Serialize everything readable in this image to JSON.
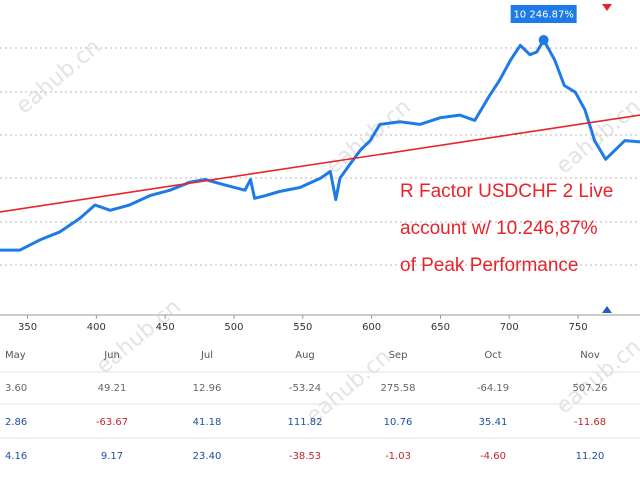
{
  "chart_data": {
    "type": "line",
    "x": [
      330,
      344.5,
      359,
      373.6,
      388,
      399,
      410,
      424,
      439,
      453.5,
      468,
      479,
      493,
      508,
      512,
      515,
      523,
      533,
      548,
      563,
      570,
      574,
      577,
      584,
      592,
      599,
      606,
      621,
      635,
      650,
      664,
      675,
      686,
      693,
      701,
      708,
      715,
      720,
      725,
      733,
      740,
      748,
      755,
      762,
      770,
      777,
      784,
      795
    ],
    "series": [
      {
        "color": "#1e7be6",
        "values": [
          2420,
          2420,
          2800,
          3100,
          3600,
          4100,
          3900,
          4100,
          4450,
          4650,
          4950,
          5050,
          4850,
          4650,
          5050,
          4350,
          4450,
          4600,
          4750,
          5100,
          5350,
          4300,
          5100,
          5600,
          6150,
          6500,
          7100,
          7200,
          7100,
          7350,
          7450,
          7250,
          8200,
          8750,
          9500,
          10050,
          9700,
          9800,
          10246.87,
          9500,
          8550,
          8300,
          7650,
          6500,
          5800,
          6150,
          6500,
          6450
        ],
        "value_labels": {
          "38": "10 246.87%"
        }
      },
      {
        "color": "#e8232a",
        "x": [
          330,
          795
        ],
        "values": [
          3840,
          7450
        ]
      }
    ],
    "xlim": [
      330,
      795
    ],
    "xticks": [
      350,
      400,
      450,
      500,
      550,
      600,
      650,
      700,
      750
    ],
    "ylim": [
      0,
      11737
    ],
    "annotation": [
      "R Factor USDCHF 2 Live",
      "account w/ 10.246,87%",
      "of Peak Performance"
    ],
    "watermark": "eahub.cn"
  },
  "table": {
    "header": [
      "May",
      "Jun",
      "Jul",
      "Aug",
      "Sep",
      "Oct",
      "Nov"
    ],
    "rows": [
      [
        "3.60",
        "49.21",
        "12.96",
        "-53.24",
        "275.58",
        "-64.19",
        "507.26"
      ],
      [
        "2.86",
        "-63.67",
        "41.18",
        "111.82",
        "10.76",
        "35.41",
        "-11.68"
      ],
      [
        "4.16",
        "9.17",
        "23.40",
        "-38.53",
        "-1.03",
        "-4.60",
        "11.20"
      ]
    ]
  }
}
